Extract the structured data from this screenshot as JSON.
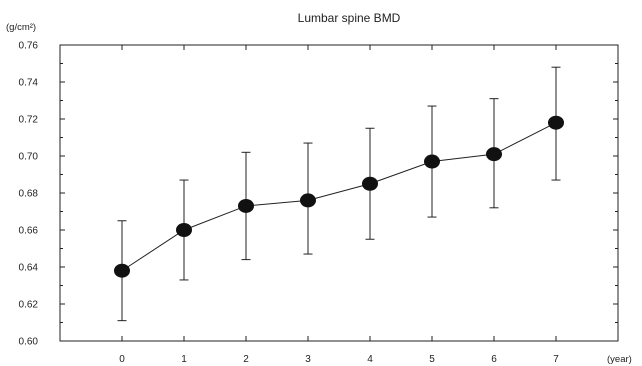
{
  "chart_data": {
    "type": "line",
    "title": "Lumbar spine BMD",
    "ylabel": "(g/cm²)",
    "xlabel": "(year)",
    "x": [
      0,
      1,
      2,
      3,
      4,
      5,
      6,
      7
    ],
    "x_tick_labels": [
      "0",
      "1",
      "2",
      "3",
      "4",
      "5",
      "6",
      "7"
    ],
    "y_tick_labels": [
      "0.60",
      "0.62",
      "0.64",
      "0.66",
      "0.68",
      "0.70",
      "0.72",
      "0.74",
      "0.76"
    ],
    "xlim": [
      -1,
      8
    ],
    "ylim": [
      0.6,
      0.76
    ],
    "y_ticks": [
      0.6,
      0.62,
      0.64,
      0.66,
      0.68,
      0.7,
      0.72,
      0.74,
      0.76
    ],
    "series": [
      {
        "values": [
          0.638,
          0.66,
          0.673,
          0.676,
          0.685,
          0.697,
          0.701,
          0.718
        ],
        "error_upper": [
          0.665,
          0.687,
          0.702,
          0.707,
          0.715,
          0.727,
          0.731,
          0.748
        ],
        "error_lower": [
          0.611,
          0.633,
          0.644,
          0.647,
          0.655,
          0.667,
          0.672,
          0.687
        ]
      }
    ],
    "grid": false,
    "legend": "none",
    "colors": {
      "line": "#222222",
      "marker": "#111111",
      "axis": "#222222"
    }
  }
}
